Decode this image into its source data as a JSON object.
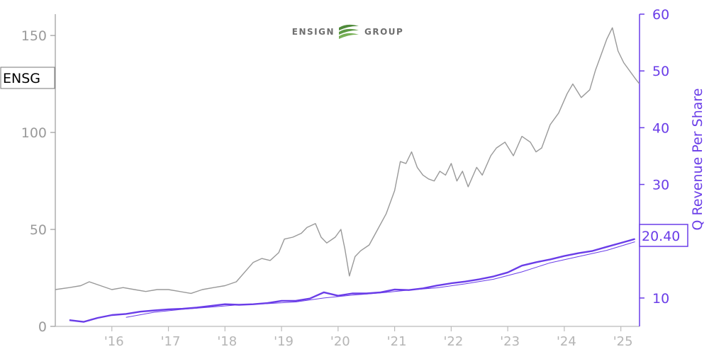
{
  "chart_data": {
    "type": "line",
    "title": "",
    "logo_text": [
      "ENSIGN",
      "GROUP"
    ],
    "ticker_label": "ENSG",
    "x_tick_labels": [
      "'16",
      "'17",
      "'18",
      "'19",
      "'20",
      "'21",
      "'22",
      "'23",
      "'24",
      "'25"
    ],
    "xlim": [
      2015.0,
      2025.33
    ],
    "left_axis": {
      "ticks": [
        0,
        50,
        100,
        150
      ],
      "ylim": [
        0,
        161
      ],
      "color": "#9a9a9a"
    },
    "right_axis": {
      "label": "Q Revenue Per Share",
      "ticks": [
        10,
        20,
        30,
        40,
        50,
        60
      ],
      "ylim": [
        5,
        60
      ],
      "color": "#6a3de8"
    },
    "last_value_label": "20.40",
    "series": [
      {
        "axis": "left",
        "color": "#999999",
        "x": [
          2015.0,
          2015.25,
          2015.45,
          2015.6,
          2015.8,
          2016.0,
          2016.2,
          2016.4,
          2016.6,
          2016.8,
          2017.0,
          2017.2,
          2017.4,
          2017.6,
          2017.8,
          2018.0,
          2018.2,
          2018.35,
          2018.5,
          2018.65,
          2018.8,
          2018.95,
          2019.05,
          2019.2,
          2019.35,
          2019.45,
          2019.6,
          2019.7,
          2019.8,
          2019.95,
          2020.05,
          2020.12,
          2020.2,
          2020.3,
          2020.4,
          2020.55,
          2020.7,
          2020.85,
          2021.0,
          2021.1,
          2021.2,
          2021.3,
          2021.4,
          2021.5,
          2021.6,
          2021.7,
          2021.8,
          2021.9,
          2022.0,
          2022.1,
          2022.2,
          2022.3,
          2022.45,
          2022.55,
          2022.7,
          2022.8,
          2022.95,
          2023.1,
          2023.25,
          2023.4,
          2023.5,
          2023.6,
          2023.75,
          2023.9,
          2024.05,
          2024.15,
          2024.3,
          2024.45,
          2024.55,
          2024.65,
          2024.75,
          2024.85,
          2024.95,
          2025.05,
          2025.15,
          2025.25,
          2025.33
        ],
        "values": [
          19,
          20,
          21,
          23,
          21,
          19,
          20,
          19,
          18,
          19,
          19,
          18,
          17,
          19,
          20,
          21,
          23,
          28,
          33,
          35,
          34,
          38,
          45,
          46,
          48,
          51,
          53,
          46,
          43,
          46,
          50,
          40,
          26,
          36,
          39,
          42,
          50,
          58,
          70,
          85,
          84,
          90,
          82,
          78,
          76,
          75,
          80,
          78,
          84,
          75,
          80,
          72,
          82,
          78,
          88,
          92,
          95,
          88,
          98,
          95,
          90,
          92,
          104,
          110,
          120,
          125,
          118,
          122,
          132,
          140,
          148,
          154,
          142,
          136,
          132,
          128,
          125
        ]
      },
      {
        "axis": "right",
        "color": "#6a3de8",
        "x": [
          2015.25,
          2015.5,
          2015.75,
          2016.0,
          2016.25,
          2016.5,
          2016.75,
          2017.0,
          2017.25,
          2017.5,
          2017.75,
          2018.0,
          2018.25,
          2018.5,
          2018.75,
          2019.0,
          2019.25,
          2019.5,
          2019.75,
          2020.0,
          2020.25,
          2020.5,
          2020.75,
          2021.0,
          2021.25,
          2021.5,
          2021.75,
          2022.0,
          2022.25,
          2022.5,
          2022.75,
          2023.0,
          2023.25,
          2023.5,
          2023.75,
          2024.0,
          2024.25,
          2024.5,
          2024.75,
          2025.0,
          2025.25
        ],
        "values": [
          6.1,
          5.8,
          6.5,
          7.0,
          7.2,
          7.6,
          7.8,
          8.0,
          8.1,
          8.3,
          8.6,
          8.9,
          8.8,
          8.9,
          9.1,
          9.5,
          9.5,
          9.9,
          11.0,
          10.4,
          10.8,
          10.8,
          11.0,
          11.5,
          11.4,
          11.7,
          12.2,
          12.6,
          12.9,
          13.3,
          13.8,
          14.5,
          15.7,
          16.3,
          16.8,
          17.4,
          17.9,
          18.3,
          19.0,
          19.7,
          20.4
        ]
      },
      {
        "axis": "right",
        "color": "#6a3de8",
        "x": [
          2016.25,
          2016.75,
          2017.25,
          2017.75,
          2018.25,
          2018.75,
          2019.25,
          2019.75,
          2020.25,
          2020.75,
          2021.25,
          2021.75,
          2022.25,
          2022.75,
          2023.25,
          2023.75,
          2024.25,
          2024.75,
          2025.25
        ],
        "values": [
          6.6,
          7.5,
          8.0,
          8.4,
          8.8,
          9.0,
          9.3,
          10.0,
          10.5,
          10.9,
          11.4,
          11.8,
          12.5,
          13.3,
          14.6,
          16.2,
          17.3,
          18.4,
          19.9
        ]
      }
    ]
  }
}
